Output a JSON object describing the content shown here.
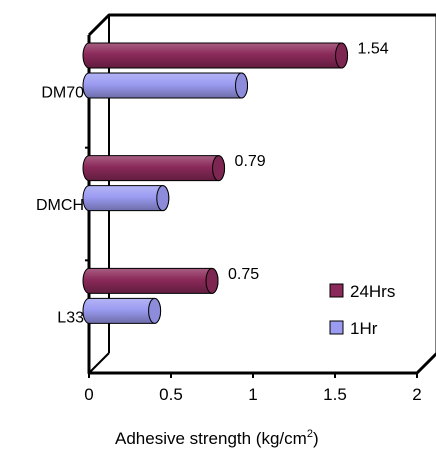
{
  "chart_data": {
    "type": "bar",
    "orientation": "horizontal",
    "style": "3d-cylinder",
    "categories": [
      "DM70",
      "DMCH",
      "L33"
    ],
    "series": [
      {
        "name": "24Hrs",
        "values": [
          1.54,
          0.79,
          0.75
        ],
        "color": "#8b2a5a",
        "data_labels": [
          "1.54",
          "0.79",
          "0.75"
        ]
      },
      {
        "name": "1Hr",
        "values": [
          0.93,
          0.45,
          0.4
        ],
        "color": "#9b9bf2"
      }
    ],
    "xlim": [
      0,
      2
    ],
    "xticks": [
      0,
      0.5,
      1,
      1.5,
      2
    ],
    "xtick_labels": [
      "0",
      "0.5",
      "1",
      "1.5",
      "2"
    ],
    "xlabel": {
      "text": "Adhesive strength (kg/cm",
      "sup": "2",
      "close": ")"
    },
    "legend": {
      "position": "bottom-right",
      "entries": [
        "24Hrs",
        "1Hr"
      ]
    },
    "grid": false
  }
}
